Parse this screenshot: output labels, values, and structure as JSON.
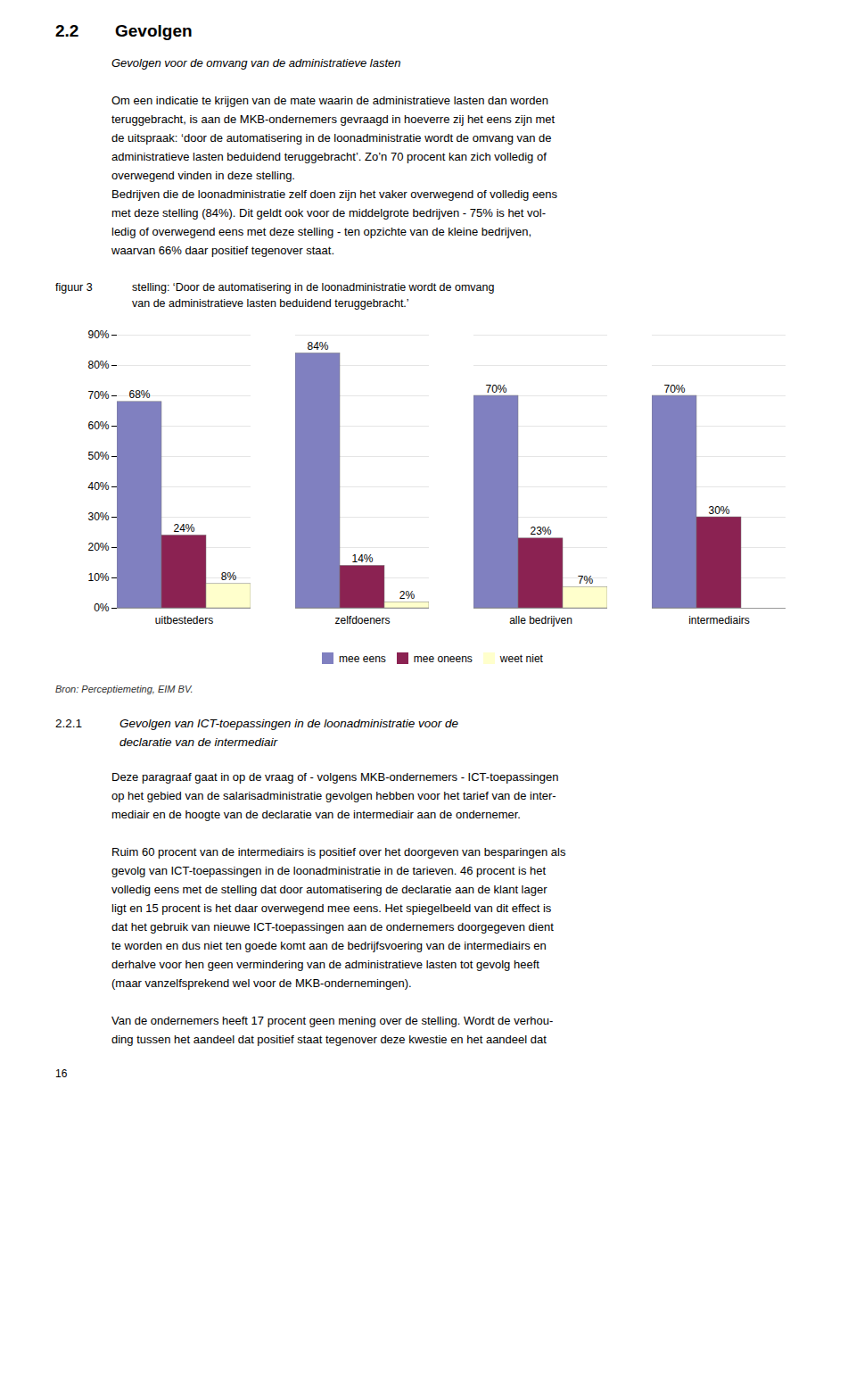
{
  "chart_data": {
    "type": "bar",
    "title": "stelling: ‘Door de automatisering in de loonadministratie wordt de omvang\nvan de administratieve lasten beduidend teruggebracht.’",
    "categories": [
      "uitbesteders",
      "zelfdoeners",
      "alle bedrijven",
      "intermediairs"
    ],
    "series": [
      {
        "name": "mee eens",
        "color": "#8080c0",
        "values": [
          68,
          84,
          70,
          70
        ],
        "value_labels": [
          "68%",
          "84%",
          "70%",
          "70%"
        ]
      },
      {
        "name": "mee oneens",
        "color": "#8B2252",
        "values": [
          24,
          14,
          23,
          30
        ],
        "value_labels": [
          "24%",
          "14%",
          "23%",
          "30%"
        ]
      },
      {
        "name": "weet niet",
        "color": "#FFFFCC",
        "values": [
          8,
          2,
          7,
          0
        ],
        "value_labels": [
          "8%",
          "2%",
          "7%",
          null
        ]
      }
    ],
    "ylim": [
      0,
      90
    ],
    "yticks": [
      {
        "value": 0,
        "label": "0%"
      },
      {
        "value": 10,
        "label": "10%"
      },
      {
        "value": 20,
        "label": "20%"
      },
      {
        "value": 30,
        "label": "30%"
      },
      {
        "value": 40,
        "label": "40%"
      },
      {
        "value": 50,
        "label": "50%"
      },
      {
        "value": 60,
        "label": "60%"
      },
      {
        "value": 70,
        "label": "70%"
      },
      {
        "value": 80,
        "label": "80%"
      },
      {
        "value": 90,
        "label": "90%"
      }
    ],
    "grid": true,
    "legend": "bottom",
    "data_labels": true,
    "annotations": [
      [
        "2.2",
        "Gevolgen"
      ],
      [
        "Gevolgen voor de omvang van de administratieve lasten"
      ],
      [
        "Om een indicatie te krijgen van de mate waarin de administratieve lasten dan worden",
        "teruggebracht, is aan de MKB-ondernemers gevraagd in hoeverre zij het eens zijn met",
        "de uitspraak: ‘door de automatisering in de loonadministratie wordt de omvang van de",
        "administratieve lasten beduidend teruggebracht’. Zo’n 70 procent kan zich volledig of",
        "overwegend vinden in deze stelling.",
        "Bedrijven die de loonadministratie zelf doen zijn het vaker overwegend of volledig eens",
        "met deze stelling (84%). Dit geldt ook voor de middelgrote bedrijven - 75% is het vol-",
        "ledig of overwegend eens met deze stelling - ten opzichte van de kleine bedrijven,",
        "waarvan 66% daar positief tegenover staat."
      ],
      [
        "figuur 3"
      ],
      [
        "Bron: Perceptiemeting, EIM BV."
      ],
      [
        "2.2.1",
        "Gevolgen van ICT-toepassingen in de loonadministratie voor de\ndeclaratie van de intermediair"
      ],
      [
        "Deze paragraaf gaat in op de vraag of - volgens MKB-ondernemers - ICT-toepassingen",
        "op het gebied van de salarisadministratie gevolgen hebben voor het tarief van de inter-",
        "mediair en de hoogte van de declaratie van de intermediair aan de ondernemer."
      ],
      [
        "Ruim 60 procent van de intermediairs is positief over het doorgeven van besparingen als",
        "gevolg van ICT-toepassingen in de loonadministratie in de tarieven. 46 procent is het",
        "volledig eens met de stelling dat door automatisering de declaratie aan de klant lager",
        "ligt en 15 procent is het daar overwegend mee eens. Het spiegelbeeld van dit effect is",
        "dat het gebruik van nieuwe ICT-toepassingen aan de ondernemers doorgegeven dient",
        "te worden en dus niet ten goede komt aan de bedrijfsvoering van de intermediairs en",
        "derhalve voor hen geen vermindering van de administratieve lasten tot gevolg heeft",
        "(maar vanzelfsprekend wel voor de MKB-ondernemingen)."
      ],
      [
        "Van de ondernemers heeft 17 procent geen mening over de stelling. Wordt de verhou-",
        "ding tussen het aandeel dat positief staat tegenover deze kwestie en het aandeel dat"
      ],
      [
        "16"
      ]
    ]
  }
}
